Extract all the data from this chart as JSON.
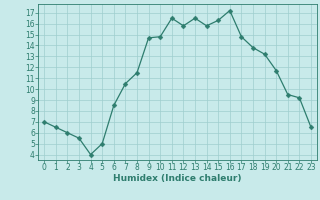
{
  "x": [
    0,
    1,
    2,
    3,
    4,
    5,
    6,
    7,
    8,
    9,
    10,
    11,
    12,
    13,
    14,
    15,
    16,
    17,
    18,
    19,
    20,
    21,
    22,
    23
  ],
  "y": [
    7,
    6.5,
    6,
    5.5,
    4,
    5,
    8.5,
    10.5,
    11.5,
    14.7,
    14.8,
    16.5,
    15.8,
    16.5,
    15.8,
    16.3,
    17.2,
    14.8,
    13.8,
    13.2,
    11.7,
    9.5,
    9.2,
    6.5
  ],
  "xlabel": "Humidex (Indice chaleur)",
  "xlim": [
    -0.5,
    23.5
  ],
  "ylim": [
    3.5,
    17.8
  ],
  "yticks": [
    4,
    5,
    6,
    7,
    8,
    9,
    10,
    11,
    12,
    13,
    14,
    15,
    16,
    17
  ],
  "xticks": [
    0,
    1,
    2,
    3,
    4,
    5,
    6,
    7,
    8,
    9,
    10,
    11,
    12,
    13,
    14,
    15,
    16,
    17,
    18,
    19,
    20,
    21,
    22,
    23
  ],
  "line_color": "#2e7d6e",
  "bg_color": "#c8eaea",
  "grid_color": "#9fcece",
  "markersize": 2.5,
  "linewidth": 0.9,
  "tick_fontsize": 5.5,
  "xlabel_fontsize": 6.5
}
